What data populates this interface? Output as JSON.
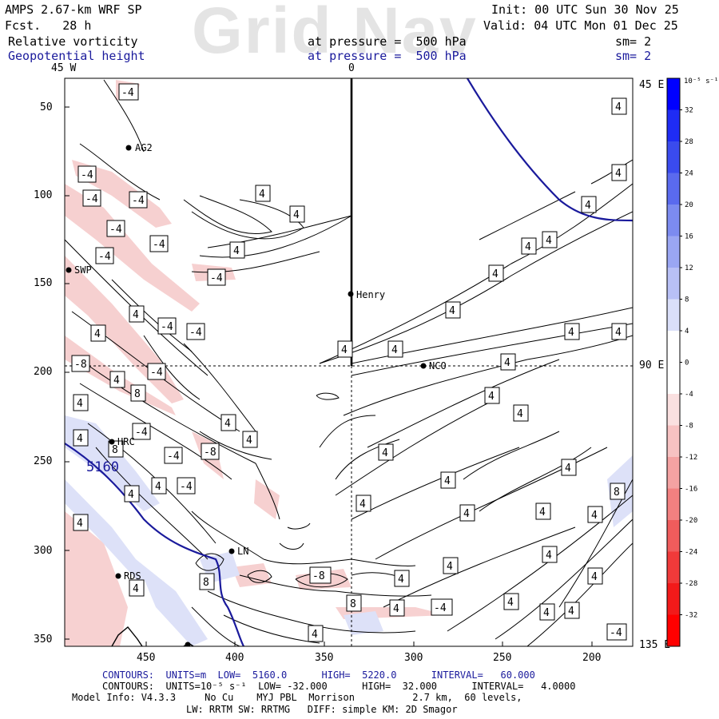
{
  "header": {
    "model": "AMPS 2.67-km WRF SP",
    "forecast": "Fcst.   28 h",
    "field1": "Relative vorticity",
    "field2": "Geopotential height",
    "pressure1": "at pressure =  500 hPa",
    "pressure2": "at pressure =  500 hPa",
    "init": "Init: 00 UTC Sun 30 Nov 25",
    "valid": "Valid: 04 UTC Mon 01 Dec 25",
    "sm1": "sm= 2",
    "sm2": "sm= 2",
    "watermark": "Grid Nav"
  },
  "map": {
    "top_labels": [
      "45 W",
      "0"
    ],
    "right_labels": [
      "45 E",
      "90 E",
      "135 E"
    ],
    "y_ticks": [
      "50",
      "100",
      "150",
      "200",
      "250",
      "300",
      "350"
    ],
    "x_ticks": [
      "450",
      "400",
      "350",
      "300",
      "250",
      "200"
    ],
    "stations": [
      "AG2",
      "SWP",
      "Henry",
      "NCO",
      "HRC",
      "LN",
      "RDS"
    ],
    "height_label": "5160",
    "contour_labels": [
      "-4",
      "4",
      "-8",
      "8"
    ]
  },
  "colorbar": {
    "unit": "10⁻⁵ s⁻¹",
    "ticks": [
      "32",
      "28",
      "24",
      "20",
      "16",
      "12",
      "8",
      "4",
      "0",
      "-4",
      "-8",
      "-12",
      "-16",
      "-20",
      "-24",
      "-28",
      "-32"
    ],
    "colors": [
      "#0000ff",
      "#1f2cf4",
      "#3a4bee",
      "#5a6aee",
      "#7c8bf0",
      "#9aa6f3",
      "#b8c0f6",
      "#dadff9",
      "#ffffff",
      "#ffffff",
      "#fae0e0",
      "#f7c2c2",
      "#f4a2a2",
      "#f28080",
      "#f05c5c",
      "#f03a3a",
      "#f21a1a",
      "#ff0000"
    ]
  },
  "footer": {
    "line1": "CONTOURS:  UNITS=m  LOW=  5160.0      HIGH=  5220.0      INTERVAL=   60.000",
    "line2": "CONTOURS:  UNITS=10⁻⁵ s⁻¹  LOW= -32.000      HIGH=  32.000      INTERVAL=   4.0000",
    "line3": "Model Info: V4.3.3     No Cu    MYJ PBL  Morrison          2.7 km,  60 levels,",
    "line4": "LW: RRTM SW: RRTMG   DIFF: simple KM: 2D Smagor"
  }
}
